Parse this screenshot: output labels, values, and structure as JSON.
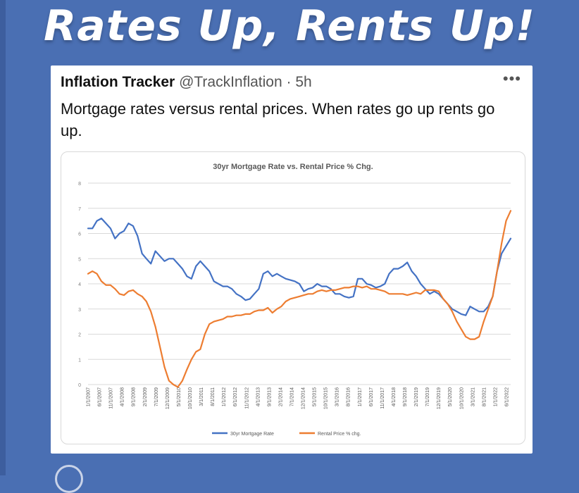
{
  "headline": "Rates Up, Rents Up!",
  "tweet": {
    "author_name": "Inflation Tracker",
    "handle": "@TrackInflation",
    "separator": "·",
    "time": "5h",
    "more_label": "•••",
    "text": "Mortgage rates versus rental prices. When rates go up rents go up."
  },
  "colors": {
    "background": "#4a6fb3",
    "mortgage": "#4472c4",
    "rental": "#ed7d31",
    "grid": "#d9d9d9"
  },
  "chart_data": {
    "type": "line",
    "title": "30yr Mortgage Rate vs. Rental Price % Chg.",
    "xlabel": "",
    "ylabel": "",
    "ylim": [
      0,
      8
    ],
    "yticks": [
      "0",
      "1",
      "2",
      "3",
      "4",
      "5",
      "6",
      "7",
      "8"
    ],
    "grid": true,
    "legend_position": "bottom",
    "x_tick_labels": [
      "1/1/2007",
      "6/1/2007",
      "11/1/2007",
      "4/1/2008",
      "9/1/2008",
      "2/1/2009",
      "7/1/2009",
      "12/1/2009",
      "5/1/2010",
      "10/1/2010",
      "3/1/2011",
      "8/1/2011",
      "1/1/2012",
      "6/1/2012",
      "11/1/2012",
      "4/1/2013",
      "9/1/2013",
      "2/1/2014",
      "7/1/2014",
      "12/1/2014",
      "5/1/2015",
      "10/1/2015",
      "3/1/2016",
      "8/1/2016",
      "1/1/2017",
      "6/1/2017",
      "11/1/2017",
      "4/1/2018",
      "9/1/2018",
      "2/1/2019",
      "7/1/2019",
      "12/1/2019",
      "5/1/2020",
      "10/1/2020",
      "3/1/2021",
      "8/1/2021",
      "1/1/2022",
      "6/1/2022"
    ],
    "x": [
      "2007-01-01",
      "2007-03-01",
      "2007-05-01",
      "2007-07-01",
      "2007-09-01",
      "2007-11-01",
      "2008-01-01",
      "2008-03-01",
      "2008-05-01",
      "2008-07-01",
      "2008-09-01",
      "2008-11-01",
      "2009-01-01",
      "2009-03-01",
      "2009-05-01",
      "2009-07-01",
      "2009-09-01",
      "2009-11-01",
      "2010-01-01",
      "2010-03-01",
      "2010-05-01",
      "2010-07-01",
      "2010-09-01",
      "2010-11-01",
      "2011-01-01",
      "2011-03-01",
      "2011-05-01",
      "2011-07-01",
      "2011-09-01",
      "2011-11-01",
      "2012-01-01",
      "2012-03-01",
      "2012-05-01",
      "2012-07-01",
      "2012-09-01",
      "2012-11-01",
      "2013-01-01",
      "2013-03-01",
      "2013-05-01",
      "2013-07-01",
      "2013-09-01",
      "2013-11-01",
      "2014-01-01",
      "2014-03-01",
      "2014-05-01",
      "2014-07-01",
      "2014-09-01",
      "2014-11-01",
      "2015-01-01",
      "2015-03-01",
      "2015-05-01",
      "2015-07-01",
      "2015-09-01",
      "2015-11-01",
      "2016-01-01",
      "2016-03-01",
      "2016-05-01",
      "2016-07-01",
      "2016-09-01",
      "2016-11-01",
      "2017-01-01",
      "2017-03-01",
      "2017-05-01",
      "2017-07-01",
      "2017-09-01",
      "2017-11-01",
      "2018-01-01",
      "2018-03-01",
      "2018-05-01",
      "2018-07-01",
      "2018-09-01",
      "2018-11-01",
      "2019-01-01",
      "2019-03-01",
      "2019-05-01",
      "2019-07-01",
      "2019-09-01",
      "2019-11-01",
      "2020-01-01",
      "2020-03-01",
      "2020-05-01",
      "2020-07-01",
      "2020-09-01",
      "2020-11-01",
      "2021-01-01",
      "2021-03-01",
      "2021-05-01",
      "2021-07-01",
      "2021-09-01",
      "2021-11-01",
      "2022-01-01",
      "2022-03-01",
      "2022-05-01",
      "2022-07-01",
      "2022-09-01"
    ],
    "series": [
      {
        "name": "30yr Mortgage Rate",
        "color": "#4472c4",
        "values": [
          6.2,
          6.2,
          6.5,
          6.6,
          6.4,
          6.2,
          5.8,
          6.0,
          6.1,
          6.4,
          6.3,
          5.9,
          5.2,
          5.0,
          4.8,
          5.3,
          5.1,
          4.9,
          5.0,
          5.0,
          4.8,
          4.6,
          4.3,
          4.2,
          4.7,
          4.9,
          4.7,
          4.5,
          4.1,
          4.0,
          3.9,
          3.9,
          3.8,
          3.6,
          3.5,
          3.35,
          3.4,
          3.6,
          3.8,
          4.4,
          4.5,
          4.3,
          4.4,
          4.3,
          4.2,
          4.15,
          4.1,
          4.0,
          3.7,
          3.8,
          3.85,
          4.0,
          3.9,
          3.9,
          3.8,
          3.6,
          3.6,
          3.5,
          3.45,
          3.5,
          4.2,
          4.2,
          4.0,
          3.95,
          3.85,
          3.9,
          4.0,
          4.4,
          4.6,
          4.6,
          4.7,
          4.85,
          4.5,
          4.3,
          4.0,
          3.8,
          3.6,
          3.7,
          3.6,
          3.4,
          3.2,
          3.0,
          2.9,
          2.8,
          2.75,
          3.1,
          3.0,
          2.9,
          2.9,
          3.1,
          3.5,
          4.5,
          5.2,
          5.5,
          5.8
        ]
      },
      {
        "name": "Rental Price % chg.",
        "color": "#ed7d31",
        "values": [
          4.4,
          4.5,
          4.4,
          4.1,
          3.95,
          3.95,
          3.8,
          3.6,
          3.55,
          3.7,
          3.75,
          3.6,
          3.5,
          3.3,
          2.9,
          2.3,
          1.5,
          0.7,
          0.15,
          0.0,
          -0.1,
          0.15,
          0.6,
          1.0,
          1.3,
          1.4,
          2.0,
          2.4,
          2.5,
          2.55,
          2.6,
          2.7,
          2.7,
          2.75,
          2.75,
          2.8,
          2.8,
          2.9,
          2.95,
          2.95,
          3.05,
          2.85,
          3.0,
          3.1,
          3.3,
          3.4,
          3.45,
          3.5,
          3.55,
          3.6,
          3.6,
          3.7,
          3.75,
          3.7,
          3.75,
          3.75,
          3.8,
          3.85,
          3.85,
          3.9,
          3.9,
          3.85,
          3.9,
          3.8,
          3.8,
          3.75,
          3.7,
          3.6,
          3.6,
          3.6,
          3.6,
          3.55,
          3.6,
          3.65,
          3.6,
          3.75,
          3.75,
          3.75,
          3.7,
          3.4,
          3.2,
          2.9,
          2.5,
          2.2,
          1.9,
          1.8,
          1.8,
          1.9,
          2.5,
          3.0,
          3.5,
          4.5,
          5.6,
          6.5,
          6.9
        ]
      }
    ]
  }
}
